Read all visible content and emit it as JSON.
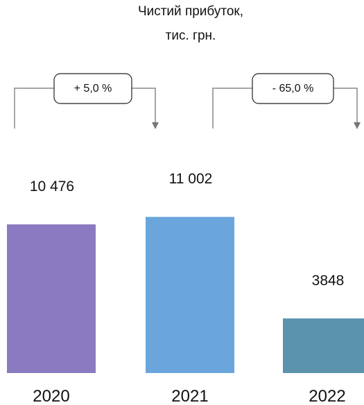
{
  "chart_data": {
    "type": "bar",
    "title_lines": [
      "Чистий прибуток,",
      "тис. грн."
    ],
    "categories": [
      "2020",
      "2021",
      "2022"
    ],
    "values": [
      10476,
      11002,
      3848
    ],
    "value_labels": [
      "10 476",
      "11 002",
      "3848"
    ],
    "colors": [
      "#8a7bc0",
      "#6aa6dc",
      "#5a93ab"
    ],
    "ylim": [
      0,
      11600
    ],
    "grid": false,
    "changes": [
      {
        "from": "2020",
        "to": "2021",
        "label": "+ 5,0 %"
      },
      {
        "from": "2021",
        "to": "2022",
        "label": "- 65,0 %"
      }
    ]
  }
}
